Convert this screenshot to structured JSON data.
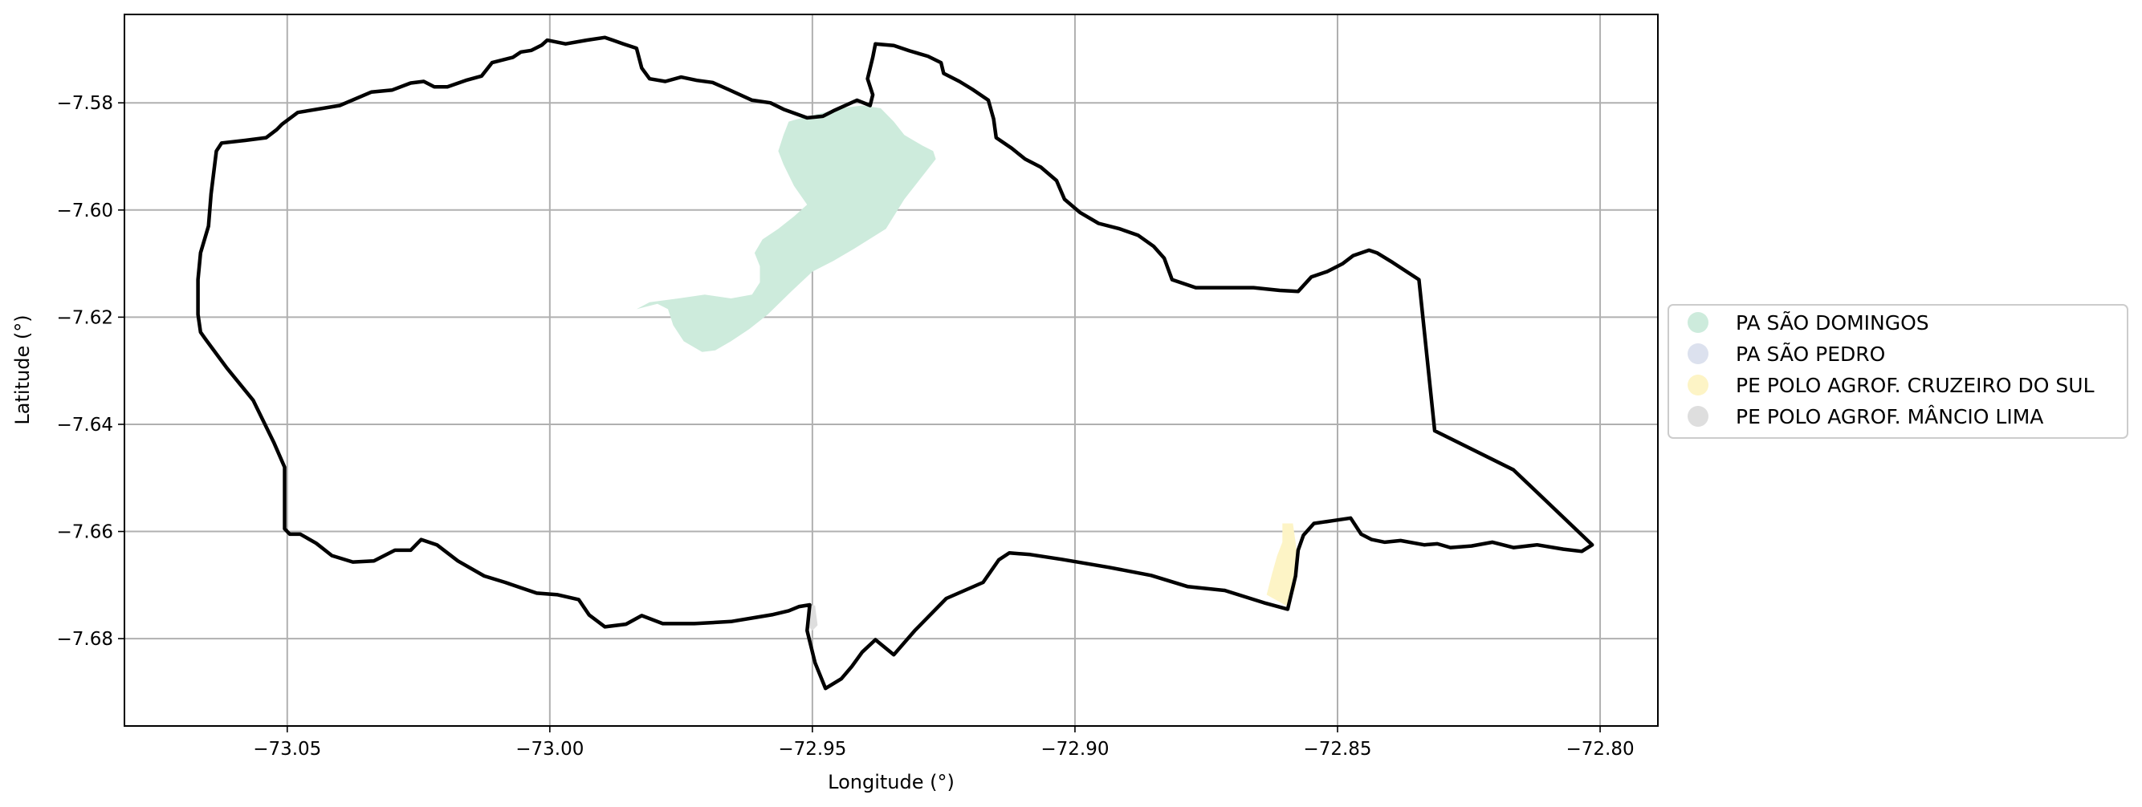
{
  "chart_data": {
    "type": "map",
    "title": "",
    "xlabel": "Longitude (°)",
    "ylabel": "Latitude (°)",
    "xlim": [
      -73.081,
      -72.789
    ],
    "ylim": [
      -7.6963,
      -7.5635
    ],
    "xticks": [
      -73.05,
      -73.0,
      -72.95,
      -72.9,
      -72.85,
      -72.8
    ],
    "xtick_labels": [
      "−73.05",
      "−73.00",
      "−72.95",
      "−72.90",
      "−72.85",
      "−72.80"
    ],
    "yticks": [
      -7.58,
      -7.6,
      -7.62,
      -7.64,
      -7.66,
      -7.68
    ],
    "ytick_labels": [
      "−7.58",
      "−7.60",
      "−7.62",
      "−7.64",
      "−7.66",
      "−7.68"
    ],
    "grid": true,
    "legend_position": "right",
    "legend": [
      {
        "label": "PA SÃO DOMINGOS",
        "color": "#cdebdc"
      },
      {
        "label": "PA SÃO PEDRO",
        "color": "#dce1ee"
      },
      {
        "label": "PE POLO AGROF. CRUZEIRO DO SUL",
        "color": "#fdf4c6"
      },
      {
        "label": "PE POLO AGROF. MÂNCIO LIMA",
        "color": "#dedede"
      }
    ],
    "boundary": {
      "color": "#000000",
      "coords": [
        [
          -73.067,
          -7.613
        ],
        [
          -73.0665,
          -7.608
        ],
        [
          -73.065,
          -7.603
        ],
        [
          -73.0645,
          -7.597
        ],
        [
          -73.0635,
          -7.589
        ],
        [
          -73.0625,
          -7.5875
        ],
        [
          -73.058,
          -7.587
        ],
        [
          -73.054,
          -7.5865
        ],
        [
          -73.052,
          -7.585
        ],
        [
          -73.051,
          -7.584
        ],
        [
          -73.048,
          -7.5818
        ],
        [
          -73.04,
          -7.5805
        ],
        [
          -73.034,
          -7.578
        ],
        [
          -73.03,
          -7.5776
        ],
        [
          -73.0265,
          -7.5763
        ],
        [
          -73.024,
          -7.576
        ],
        [
          -73.022,
          -7.577
        ],
        [
          -73.0195,
          -7.577
        ],
        [
          -73.016,
          -7.5758
        ],
        [
          -73.013,
          -7.575
        ],
        [
          -73.011,
          -7.5725
        ],
        [
          -73.007,
          -7.5715
        ],
        [
          -73.0055,
          -7.5705
        ],
        [
          -73.0035,
          -7.5702
        ],
        [
          -73.0015,
          -7.5692
        ],
        [
          -73.0005,
          -7.5683
        ],
        [
          -72.997,
          -7.569
        ],
        [
          -72.993,
          -7.5683
        ],
        [
          -72.9895,
          -7.5678
        ],
        [
          -72.986,
          -7.569
        ],
        [
          -72.9835,
          -7.5698
        ],
        [
          -72.9825,
          -7.5735
        ],
        [
          -72.981,
          -7.5755
        ],
        [
          -72.978,
          -7.576
        ],
        [
          -72.975,
          -7.5752
        ],
        [
          -72.972,
          -7.5758
        ],
        [
          -72.969,
          -7.5762
        ],
        [
          -72.966,
          -7.5775
        ],
        [
          -72.9615,
          -7.5795
        ],
        [
          -72.958,
          -7.58
        ],
        [
          -72.9555,
          -7.5812
        ],
        [
          -72.951,
          -7.5828
        ],
        [
          -72.948,
          -7.5825
        ],
        [
          -72.946,
          -7.5815
        ],
        [
          -72.9415,
          -7.5795
        ],
        [
          -72.939,
          -7.5805
        ],
        [
          -72.9385,
          -7.5785
        ],
        [
          -72.9395,
          -7.5755
        ],
        [
          -72.9385,
          -7.5715
        ],
        [
          -72.938,
          -7.569
        ],
        [
          -72.9345,
          -7.5693
        ],
        [
          -72.9315,
          -7.5703
        ],
        [
          -72.928,
          -7.5713
        ],
        [
          -72.9255,
          -7.5725
        ],
        [
          -72.925,
          -7.5745
        ],
        [
          -72.922,
          -7.576
        ],
        [
          -72.9195,
          -7.5775
        ],
        [
          -72.9165,
          -7.5795
        ],
        [
          -72.9155,
          -7.583
        ],
        [
          -72.915,
          -7.5865
        ],
        [
          -72.912,
          -7.5885
        ],
        [
          -72.9095,
          -7.5905
        ],
        [
          -72.9065,
          -7.592
        ],
        [
          -72.9035,
          -7.5945
        ],
        [
          -72.902,
          -7.598
        ],
        [
          -72.899,
          -7.6005
        ],
        [
          -72.8955,
          -7.6025
        ],
        [
          -72.8915,
          -7.6035
        ],
        [
          -72.888,
          -7.6047
        ],
        [
          -72.885,
          -7.6068
        ],
        [
          -72.883,
          -7.609
        ],
        [
          -72.8815,
          -7.613
        ],
        [
          -72.877,
          -7.6145
        ],
        [
          -72.872,
          -7.6145
        ],
        [
          -72.866,
          -7.6145
        ],
        [
          -72.861,
          -7.615
        ],
        [
          -72.8575,
          -7.6152
        ],
        [
          -72.855,
          -7.6125
        ],
        [
          -72.852,
          -7.6115
        ],
        [
          -72.849,
          -7.61
        ],
        [
          -72.847,
          -7.6085
        ],
        [
          -72.844,
          -7.6075
        ],
        [
          -72.8425,
          -7.608
        ],
        [
          -72.8395,
          -7.6098
        ],
        [
          -72.8345,
          -7.613
        ],
        [
          -72.8315,
          -7.6412
        ],
        [
          -72.8165,
          -7.6485
        ],
        [
          -72.8015,
          -7.6625
        ],
        [
          -72.8035,
          -7.6637
        ],
        [
          -72.807,
          -7.6633
        ],
        [
          -72.812,
          -7.6625
        ],
        [
          -72.8165,
          -7.663
        ],
        [
          -72.8205,
          -7.662
        ],
        [
          -72.8245,
          -7.6627
        ],
        [
          -72.8285,
          -7.663
        ],
        [
          -72.831,
          -7.6623
        ],
        [
          -72.8335,
          -7.6625
        ],
        [
          -72.838,
          -7.6617
        ],
        [
          -72.841,
          -7.662
        ],
        [
          -72.8435,
          -7.6615
        ],
        [
          -72.8455,
          -7.6605
        ],
        [
          -72.8475,
          -7.6575
        ],
        [
          -72.851,
          -7.658
        ],
        [
          -72.8545,
          -7.6585
        ],
        [
          -72.8565,
          -7.6607
        ],
        [
          -72.8575,
          -7.6635
        ],
        [
          -72.858,
          -7.6683
        ],
        [
          -72.8595,
          -7.6745
        ],
        [
          -72.864,
          -7.6733
        ],
        [
          -72.8715,
          -7.671
        ],
        [
          -72.8785,
          -7.6703
        ],
        [
          -72.8855,
          -7.6682
        ],
        [
          -72.8935,
          -7.6667
        ],
        [
          -72.9025,
          -7.6652
        ],
        [
          -72.9085,
          -7.6643
        ],
        [
          -72.9125,
          -7.664
        ],
        [
          -72.9145,
          -7.6653
        ],
        [
          -72.9175,
          -7.6695
        ],
        [
          -72.9245,
          -7.6725
        ],
        [
          -72.9305,
          -7.6785
        ],
        [
          -72.9345,
          -7.683
        ],
        [
          -72.938,
          -7.6802
        ],
        [
          -72.9405,
          -7.6825
        ],
        [
          -72.9425,
          -7.6852
        ],
        [
          -72.9445,
          -7.6875
        ],
        [
          -72.9475,
          -7.6893
        ],
        [
          -72.9495,
          -7.6845
        ],
        [
          -72.951,
          -7.6785
        ],
        [
          -72.9505,
          -7.6737
        ],
        [
          -72.9525,
          -7.674
        ],
        [
          -72.9545,
          -7.6748
        ],
        [
          -72.9575,
          -7.6755
        ],
        [
          -72.9605,
          -7.676
        ],
        [
          -72.9655,
          -7.6768
        ],
        [
          -72.9725,
          -7.6772
        ],
        [
          -72.9785,
          -7.6772
        ],
        [
          -72.9825,
          -7.6757
        ],
        [
          -72.9855,
          -7.6773
        ],
        [
          -72.9895,
          -7.6778
        ],
        [
          -72.9925,
          -7.6756
        ],
        [
          -72.9945,
          -7.6727
        ],
        [
          -72.9985,
          -7.6718
        ],
        [
          -73.0025,
          -7.6715
        ],
        [
          -73.0055,
          -7.6705
        ],
        [
          -73.0085,
          -7.6695
        ],
        [
          -73.0125,
          -7.6683
        ],
        [
          -73.0175,
          -7.6655
        ],
        [
          -73.0215,
          -7.6625
        ],
        [
          -73.0245,
          -7.6615
        ],
        [
          -73.0265,
          -7.6635
        ],
        [
          -73.0295,
          -7.6635
        ],
        [
          -73.0335,
          -7.6655
        ],
        [
          -73.0375,
          -7.6657
        ],
        [
          -73.0415,
          -7.6645
        ],
        [
          -73.0445,
          -7.6622
        ],
        [
          -73.0475,
          -7.6605
        ],
        [
          -73.0495,
          -7.6605
        ],
        [
          -73.0505,
          -7.6595
        ],
        [
          -73.0505,
          -7.6555
        ],
        [
          -73.0505,
          -7.648
        ],
        [
          -73.0525,
          -7.6435
        ],
        [
          -73.0565,
          -7.6355
        ],
        [
          -73.0615,
          -7.6295
        ],
        [
          -73.0655,
          -7.6242
        ],
        [
          -73.0665,
          -7.6228
        ],
        [
          -73.067,
          -7.6195
        ],
        [
          -73.067,
          -7.613
        ]
      ]
    },
    "regions": [
      {
        "label": "PA SÃO DOMINGOS",
        "color": "#cdebdc",
        "coords": [
          [
            -72.9835,
            -7.6185
          ],
          [
            -72.9795,
            -7.6175
          ],
          [
            -72.9775,
            -7.6185
          ],
          [
            -72.9765,
            -7.6215
          ],
          [
            -72.9745,
            -7.6245
          ],
          [
            -72.971,
            -7.6265
          ],
          [
            -72.9685,
            -7.6262
          ],
          [
            -72.9655,
            -7.6245
          ],
          [
            -72.962,
            -7.6222
          ],
          [
            -72.9585,
            -7.6195
          ],
          [
            -72.954,
            -7.6152
          ],
          [
            -72.95,
            -7.6115
          ],
          [
            -72.946,
            -7.6095
          ],
          [
            -72.942,
            -7.6072
          ],
          [
            -72.936,
            -7.6035
          ],
          [
            -72.9325,
            -7.598
          ],
          [
            -72.9265,
            -7.5905
          ],
          [
            -72.927,
            -7.589
          ],
          [
            -72.929,
            -7.588
          ],
          [
            -72.9325,
            -7.586
          ],
          [
            -72.9345,
            -7.5835
          ],
          [
            -72.937,
            -7.581
          ],
          [
            -72.9405,
            -7.5805
          ],
          [
            -72.9445,
            -7.581
          ],
          [
            -72.9495,
            -7.5822
          ],
          [
            -72.9535,
            -7.5832
          ],
          [
            -72.9545,
            -7.5835
          ],
          [
            -72.9555,
            -7.586
          ],
          [
            -72.9565,
            -7.589
          ],
          [
            -72.9555,
            -7.5915
          ],
          [
            -72.9535,
            -7.5955
          ],
          [
            -72.951,
            -7.599
          ],
          [
            -72.9535,
            -7.6012
          ],
          [
            -72.9565,
            -7.6035
          ],
          [
            -72.9595,
            -7.6055
          ],
          [
            -72.961,
            -7.608
          ],
          [
            -72.96,
            -7.6105
          ],
          [
            -72.96,
            -7.6135
          ],
          [
            -72.9615,
            -7.6158
          ],
          [
            -72.9655,
            -7.6165
          ],
          [
            -72.9705,
            -7.6158
          ],
          [
            -72.9755,
            -7.6165
          ],
          [
            -72.981,
            -7.6172
          ],
          [
            -72.9835,
            -7.6185
          ]
        ]
      },
      {
        "label": "PE POLO AGROF. CRUZEIRO DO SUL",
        "color": "#fdf4c6",
        "coords": [
          [
            -72.8635,
            -7.6718
          ],
          [
            -72.8625,
            -7.668
          ],
          [
            -72.8615,
            -7.6645
          ],
          [
            -72.8605,
            -7.662
          ],
          [
            -72.8605,
            -7.6585
          ],
          [
            -72.8585,
            -7.6585
          ],
          [
            -72.858,
            -7.662
          ],
          [
            -72.8575,
            -7.6658
          ],
          [
            -72.858,
            -7.6705
          ],
          [
            -72.8595,
            -7.674
          ],
          [
            -72.8635,
            -7.6718
          ]
        ]
      },
      {
        "label": "PE POLO AGROF. MÂNCIO LIMA",
        "color": "#dedede",
        "coords": [
          [
            -72.9505,
            -7.6738
          ],
          [
            -72.9495,
            -7.6738
          ],
          [
            -72.949,
            -7.6775
          ],
          [
            -72.95,
            -7.6785
          ],
          [
            -72.951,
            -7.6775
          ],
          [
            -72.9505,
            -7.6738
          ]
        ]
      }
    ]
  }
}
